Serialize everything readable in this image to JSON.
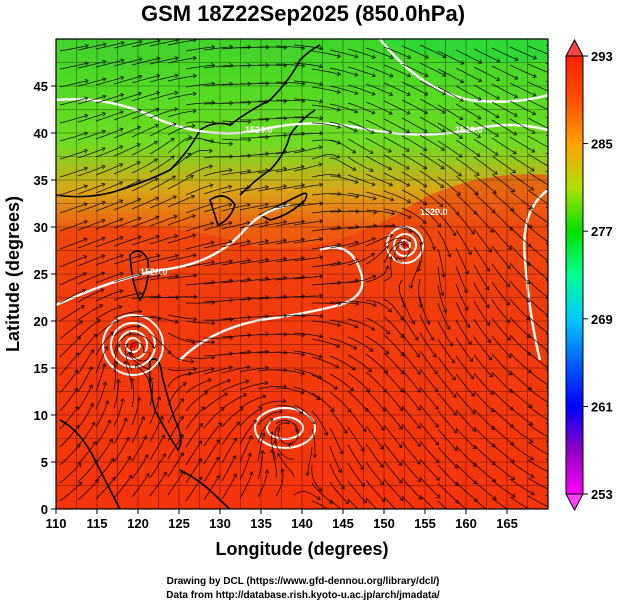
{
  "title": "GSM 18Z22Sep2025 (850.0hPa)",
  "x_axis": {
    "label": "Longitude (degrees)",
    "range": [
      110,
      170
    ],
    "ticks": [
      "110",
      "115",
      "120",
      "125",
      "130",
      "135",
      "140",
      "145",
      "150",
      "155",
      "160",
      "165"
    ]
  },
  "y_axis": {
    "label": "Latitude  (degrees)",
    "range": [
      0,
      50
    ],
    "ticks": [
      "0",
      "5",
      "10",
      "15",
      "20",
      "25",
      "30",
      "35",
      "40",
      "45"
    ]
  },
  "colorbar": {
    "range": [
      253,
      293
    ],
    "ticks": [
      "253",
      "261",
      "269",
      "277",
      "285",
      "293"
    ],
    "colors": [
      "#ff00ff",
      "#0000ff",
      "#00ffff",
      "#00ff00",
      "#ff8c00",
      "#ff0000"
    ]
  },
  "contour_labels": [
    {
      "text": "1520.0"
    },
    {
      "text": "1520.0"
    },
    {
      "text": "1520.0"
    },
    {
      "text": "1520.0"
    }
  ],
  "credits": {
    "line1": "Drawing by DCL (https://www.gfd-dennou.org/library/dcl/)",
    "line2": "Data from http://database.rish.kyoto-u.ac.jp/arch/jmadata/"
  }
}
